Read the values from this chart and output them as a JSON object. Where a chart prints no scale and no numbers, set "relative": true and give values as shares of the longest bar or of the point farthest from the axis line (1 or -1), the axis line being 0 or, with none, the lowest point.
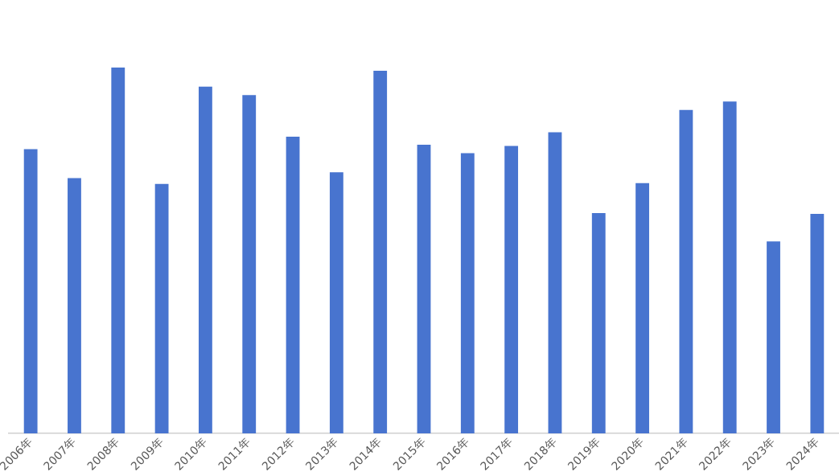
{
  "chart_data": {
    "type": "bar",
    "relative": true,
    "categories": [
      "2006年",
      "2007年",
      "2008年",
      "2009年",
      "2010年",
      "2011年",
      "2012年",
      "2013年",
      "2014年",
      "2015年",
      "2016年",
      "2017年",
      "2018年",
      "2019年",
      "2020年",
      "2021年",
      "2022年",
      "2023年",
      "2024年"
    ],
    "values": [
      0.777,
      0.698,
      1,
      0.682,
      0.948,
      0.925,
      0.811,
      0.714,
      0.991,
      0.789,
      0.766,
      0.786,
      0.823,
      0.602,
      0.684,
      0.884,
      0.907,
      0.525,
      0.6
    ],
    "color": "#4874cf",
    "grid": false,
    "legend": false
  }
}
